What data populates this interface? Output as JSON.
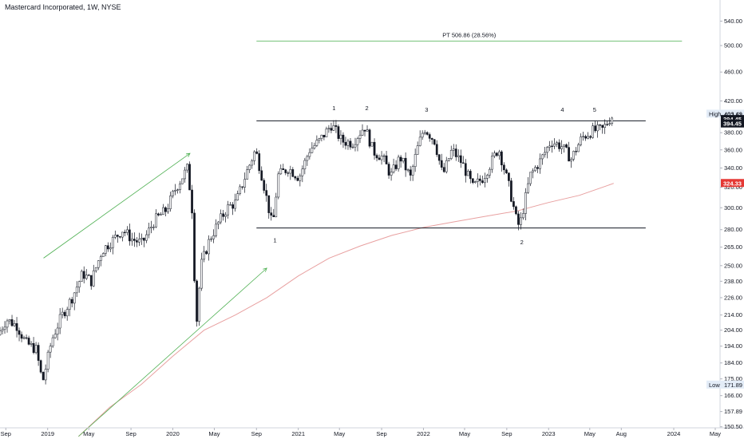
{
  "title": "Mastercard Incorporated, 1W, NYSE",
  "colors": {
    "candle_up": "#ffffff",
    "candle_down": "#131722",
    "candle_outline": "#131722",
    "moving_average": "#e8a0a0",
    "trendline": "#4caf50",
    "target_line": "#4caf50",
    "horizontal_levels": "#131722",
    "price_tag_bg": "#131722",
    "ma_tag_bg": "#e53935",
    "high_low_tag_bg": "#e3ecf7"
  },
  "chart_data": {
    "type": "candlestick",
    "title": "Mastercard Incorporated, 1W, NYSE",
    "y_scale": "log",
    "ylim": [
      150,
      560
    ],
    "xlim": [
      "2018-08-15",
      "2024-05-15"
    ],
    "y_ticks": [
      150.5,
      157.89,
      166.0,
      175.0,
      184.0,
      194.0,
      204.0,
      214.0,
      226.0,
      238.0,
      250.0,
      265.0,
      280.0,
      300.0,
      320.0,
      340.0,
      360.0,
      380.0,
      400.0,
      420.0,
      460.0,
      500.0,
      540.0
    ],
    "y_tick_labels": [
      "150.50",
      "157.89",
      "166.00",
      "175.00",
      "184.00",
      "194.00",
      "204.00",
      "214.00",
      "226.00",
      "238.00",
      "250.00",
      "265.00",
      "280.00",
      "300.00",
      "320.00",
      "340.00",
      "360.00",
      "380.00",
      "400.00",
      "420.00",
      "460.00",
      "500.00",
      "540.00"
    ],
    "x_ticks": [
      {
        "date": "2018-09-01",
        "label": "Sep"
      },
      {
        "date": "2019-01-01",
        "label": "2019"
      },
      {
        "date": "2019-05-01",
        "label": "May"
      },
      {
        "date": "2019-09-01",
        "label": "Sep"
      },
      {
        "date": "2020-01-01",
        "label": "2020"
      },
      {
        "date": "2020-05-01",
        "label": "May"
      },
      {
        "date": "2020-09-01",
        "label": "Sep"
      },
      {
        "date": "2021-01-01",
        "label": "2021"
      },
      {
        "date": "2021-05-01",
        "label": "May"
      },
      {
        "date": "2021-09-01",
        "label": "Sep"
      },
      {
        "date": "2022-01-01",
        "label": "2022"
      },
      {
        "date": "2022-05-01",
        "label": "May"
      },
      {
        "date": "2022-09-01",
        "label": "Sep"
      },
      {
        "date": "2023-01-01",
        "label": "2023"
      },
      {
        "date": "2023-05-01",
        "label": "May"
      },
      {
        "date": "2023-08-01",
        "label": "Aug"
      },
      {
        "date": "2024-01-01",
        "label": "2024"
      },
      {
        "date": "2024-05-01",
        "label": "May"
      }
    ],
    "price_path": [
      [
        "2018-08-15",
        201
      ],
      [
        "2018-09-10",
        211
      ],
      [
        "2018-10-10",
        207
      ],
      [
        "2018-11-05",
        196
      ],
      [
        "2018-12-05",
        192
      ],
      [
        "2018-12-24",
        173
      ],
      [
        "2019-01-20",
        198
      ],
      [
        "2019-02-15",
        212
      ],
      [
        "2019-03-20",
        226
      ],
      [
        "2019-04-20",
        244
      ],
      [
        "2019-05-15",
        238
      ],
      [
        "2019-06-15",
        262
      ],
      [
        "2019-07-20",
        272
      ],
      [
        "2019-08-15",
        280
      ],
      [
        "2019-09-10",
        272
      ],
      [
        "2019-10-10",
        268
      ],
      [
        "2019-11-15",
        288
      ],
      [
        "2019-12-20",
        298
      ],
      [
        "2020-01-15",
        318
      ],
      [
        "2020-02-20",
        340
      ],
      [
        "2020-03-05",
        296
      ],
      [
        "2020-03-16",
        205
      ],
      [
        "2020-03-30",
        250
      ],
      [
        "2020-04-25",
        272
      ],
      [
        "2020-05-20",
        286
      ],
      [
        "2020-06-15",
        300
      ],
      [
        "2020-07-10",
        305
      ],
      [
        "2020-08-10",
        335
      ],
      [
        "2020-09-05",
        360
      ],
      [
        "2020-09-25",
        330
      ],
      [
        "2020-10-25",
        282
      ],
      [
        "2020-11-10",
        332
      ],
      [
        "2020-12-10",
        340
      ],
      [
        "2021-01-10",
        330
      ],
      [
        "2021-02-10",
        360
      ],
      [
        "2021-03-10",
        370
      ],
      [
        "2021-04-15",
        390
      ],
      [
        "2021-05-15",
        370
      ],
      [
        "2021-06-15",
        368
      ],
      [
        "2021-07-20",
        388
      ],
      [
        "2021-08-15",
        358
      ],
      [
        "2021-09-10",
        352
      ],
      [
        "2021-10-05",
        332
      ],
      [
        "2021-11-01",
        352
      ],
      [
        "2021-12-01",
        330
      ],
      [
        "2021-12-20",
        360
      ],
      [
        "2022-01-10",
        386
      ],
      [
        "2022-02-10",
        370
      ],
      [
        "2022-03-05",
        332
      ],
      [
        "2022-04-01",
        360
      ],
      [
        "2022-05-01",
        345
      ],
      [
        "2022-06-01",
        320
      ],
      [
        "2022-07-01",
        330
      ],
      [
        "2022-08-15",
        362
      ],
      [
        "2022-09-15",
        320
      ],
      [
        "2022-10-05",
        290
      ],
      [
        "2022-10-15",
        282
      ],
      [
        "2022-11-15",
        332
      ],
      [
        "2022-12-15",
        348
      ],
      [
        "2023-01-15",
        370
      ],
      [
        "2023-02-15",
        364
      ],
      [
        "2023-03-15",
        350
      ],
      [
        "2023-04-15",
        374
      ],
      [
        "2023-05-15",
        382
      ],
      [
        "2023-06-15",
        384
      ],
      [
        "2023-07-01",
        394
      ],
      [
        "2023-07-10",
        400
      ]
    ],
    "moving_average": [
      [
        "2019-04-01",
        146
      ],
      [
        "2019-07-01",
        160
      ],
      [
        "2019-10-01",
        172
      ],
      [
        "2020-01-01",
        188
      ],
      [
        "2020-04-01",
        204
      ],
      [
        "2020-07-01",
        214
      ],
      [
        "2020-10-01",
        226
      ],
      [
        "2021-01-01",
        242
      ],
      [
        "2021-04-01",
        256
      ],
      [
        "2021-07-01",
        266
      ],
      [
        "2021-10-01",
        275
      ],
      [
        "2022-01-01",
        282
      ],
      [
        "2022-04-01",
        287
      ],
      [
        "2022-07-01",
        292
      ],
      [
        "2022-10-01",
        297
      ],
      [
        "2023-01-01",
        305
      ],
      [
        "2023-04-01",
        312
      ],
      [
        "2023-07-10",
        324
      ]
    ],
    "horizontal_levels": [
      {
        "price": 394.45,
        "from": "2020-09-01",
        "to": "2023-07-10"
      },
      {
        "price": 281.5,
        "from": "2020-09-01",
        "to": "2023-07-10"
      }
    ],
    "target_line": {
      "price": 506.86,
      "from": "2020-09-01",
      "to": "2023-08-15",
      "label": "PT 506.86 (28.56%)"
    },
    "trendlines": [
      {
        "from": [
          "2018-12-20",
          256
        ],
        "to": [
          "2020-02-20",
          356
        ]
      },
      {
        "from": [
          "2019-04-01",
          146
        ],
        "to": [
          "2020-10-01",
          248
        ]
      }
    ],
    "annotations": [
      {
        "text": "1",
        "date": "2021-04-15",
        "price": 406,
        "pos": "above"
      },
      {
        "text": "2",
        "date": "2021-07-20",
        "price": 406,
        "pos": "above"
      },
      {
        "text": "3",
        "date": "2022-01-10",
        "price": 404,
        "pos": "above"
      },
      {
        "text": "4",
        "date": "2023-02-10",
        "price": 404,
        "pos": "above"
      },
      {
        "text": "5",
        "date": "2023-05-15",
        "price": 404,
        "pos": "above"
      },
      {
        "text": "1",
        "date": "2020-10-25",
        "price": 272,
        "pos": "below"
      },
      {
        "text": "2",
        "date": "2022-10-15",
        "price": 270,
        "pos": "below"
      }
    ],
    "price_tags": [
      {
        "price": 403.49,
        "text": "403.49",
        "prefix": "High",
        "style": "highlow"
      },
      {
        "price": 402.51,
        "text": "402.51",
        "style": "plain"
      },
      {
        "price": 396.7,
        "text": "394.45",
        "style": "dark"
      },
      {
        "price": 391.2,
        "text": "394.45",
        "style": "dark"
      },
      {
        "price": 324.33,
        "text": "324.33",
        "style": "red"
      },
      {
        "price": 171.89,
        "text": "171.89",
        "prefix": "Low",
        "style": "highlow"
      }
    ]
  }
}
